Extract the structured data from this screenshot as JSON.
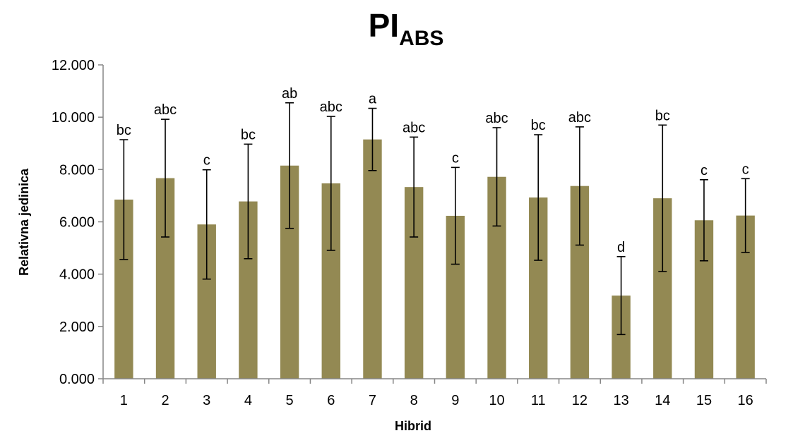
{
  "chart_data": {
    "type": "bar",
    "title": "PI",
    "title_subscript": "ABS",
    "xlabel": "Hibrid",
    "ylabel": "Relativna jedinica",
    "ylim": [
      0,
      12
    ],
    "yticks": [
      "0.000",
      "2.000",
      "4.000",
      "6.000",
      "8.000",
      "10.000",
      "12.000"
    ],
    "grid": false,
    "bar_color": "#938953",
    "categories": [
      "1",
      "2",
      "3",
      "4",
      "5",
      "6",
      "7",
      "8",
      "9",
      "10",
      "11",
      "12",
      "13",
      "14",
      "15",
      "16"
    ],
    "values": [
      6.85,
      7.67,
      5.9,
      6.78,
      8.15,
      7.47,
      9.15,
      7.33,
      6.23,
      7.72,
      6.93,
      7.37,
      3.18,
      6.9,
      6.06,
      6.24
    ],
    "error_upper": [
      9.14,
      9.92,
      7.99,
      8.97,
      10.55,
      10.03,
      10.34,
      9.24,
      8.08,
      9.6,
      9.33,
      9.63,
      4.67,
      9.7,
      7.61,
      7.65
    ],
    "error_lower": [
      4.56,
      5.42,
      3.81,
      4.59,
      5.75,
      4.91,
      7.96,
      5.42,
      4.38,
      5.84,
      4.53,
      5.11,
      1.69,
      4.1,
      4.51,
      4.83
    ],
    "annotations": [
      "bc",
      "abc",
      "c",
      "bc",
      "ab",
      "abc",
      "a",
      "abc",
      "c",
      "abc",
      "bc",
      "abc",
      "d",
      "bc",
      "c",
      "c"
    ]
  }
}
